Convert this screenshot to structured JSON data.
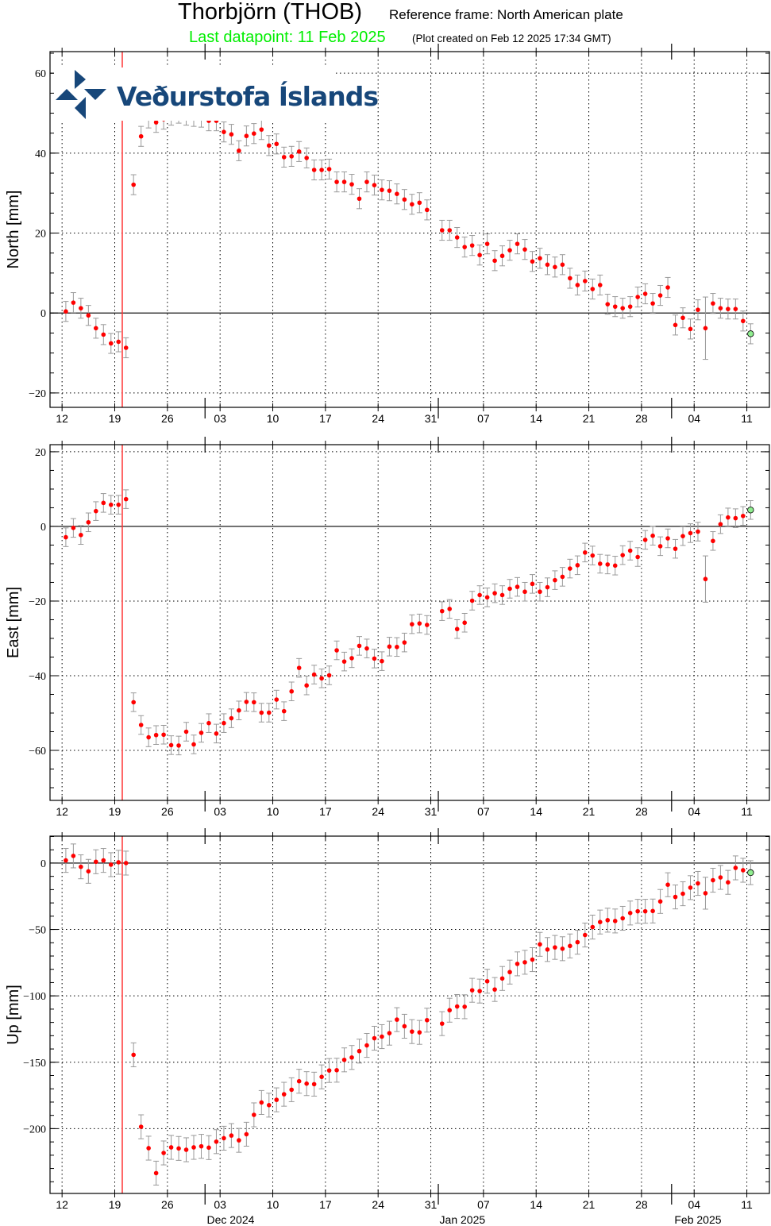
{
  "header": {
    "title": "Thorbjörn (THOB)",
    "reference_frame": "Reference frame: North American plate",
    "last_datapoint": "Last datapoint: 11 Feb 2025",
    "plot_created": "(Plot created on Feb 12 2025 17:34 GMT)"
  },
  "logo": {
    "text": "Veðurstofa Íslands"
  },
  "colors": {
    "point": "#ff0000",
    "last_point": "#90ee90",
    "event_line": "#ff3333",
    "error_bar": "#999999",
    "last_datapoint_text": "#00ee00",
    "logo": "#17477a"
  },
  "chart_data": [
    {
      "type": "scatter",
      "name": "north",
      "ylabel": "North [mm]",
      "ylim": [
        -23.6,
        65.4
      ],
      "yticks": [
        -20,
        0,
        20,
        40,
        60
      ],
      "yminor_step": 5,
      "x_start": "12 Nov 2024",
      "x_unit": "days",
      "error_default": 2.5,
      "error_overrides": {
        "85": 7.8
      },
      "values": [
        0.4,
        2.6,
        1.2,
        -0.6,
        -3.8,
        -5.4,
        -7.6,
        -7.2,
        -8.7,
        32.1,
        44.2,
        48.8,
        47.7,
        48.5,
        49.5,
        50.0,
        49.5,
        49.2,
        49.0,
        48.1,
        48.1,
        45.3,
        44.7,
        40.6,
        44.3,
        44.9,
        45.9,
        41.9,
        42.3,
        39.0,
        39.2,
        40.4,
        38.8,
        35.8,
        35.8,
        36.0,
        32.8,
        32.8,
        32.2,
        28.6,
        32.8,
        32.0,
        30.8,
        30.6,
        29.8,
        28.4,
        27.2,
        27.6,
        25.8,
        null,
        20.7,
        20.7,
        18.9,
        16.5,
        16.9,
        14.5,
        17.3,
        13.1,
        14.3,
        15.7,
        17.3,
        15.9,
        12.9,
        13.7,
        12.1,
        11.5,
        12.1,
        8.7,
        7.0,
        8.0,
        6.0,
        7.0,
        2.2,
        1.6,
        1.2,
        1.6,
        4.0,
        4.8,
        2.4,
        4.4,
        6.4,
        -3.0,
        -1.2,
        -4.0,
        0.8,
        -3.8,
        2.4,
        1.2,
        1.0,
        1.0,
        -2.0,
        -5.2
      ]
    },
    {
      "type": "scatter",
      "name": "east",
      "ylabel": "East [mm]",
      "ylim": [
        -73.4,
        21.9
      ],
      "yticks": [
        -60,
        -40,
        -20,
        0,
        20
      ],
      "yminor_step": 5,
      "x_start": "12 Nov 2024",
      "x_unit": "days",
      "error_default": 2.5,
      "error_overrides": {
        "85": 6.2
      },
      "values": [
        -2.9,
        -0.4,
        -2.3,
        1.1,
        4.1,
        6.3,
        5.8,
        5.8,
        7.3,
        -47.1,
        -53.2,
        -56.5,
        -55.9,
        -55.8,
        -58.6,
        -58.7,
        -55.0,
        -58.4,
        -55.3,
        -52.7,
        -55.5,
        -52.7,
        -51.4,
        -49.3,
        -47.0,
        -47.1,
        -49.9,
        -49.9,
        -46.4,
        -49.5,
        -44.2,
        -37.9,
        -42.6,
        -39.7,
        -40.7,
        -39.9,
        -33.2,
        -36.2,
        -35.3,
        -32.0,
        -32.7,
        -35.4,
        -36.1,
        -32.2,
        -32.3,
        -31.1,
        -26.2,
        -26.0,
        -26.4,
        null,
        -22.7,
        -22.1,
        -27.5,
        -25.8,
        -19.9,
        -18.4,
        -19.0,
        -17.9,
        -18.4,
        -16.7,
        -16.2,
        -17.5,
        -15.4,
        -17.5,
        -16.3,
        -14.4,
        -13.5,
        -11.3,
        -10.4,
        -7.0,
        -7.8,
        -10.0,
        -10.2,
        -10.5,
        -7.7,
        -6.5,
        -8.2,
        -3.6,
        -2.5,
        -5.3,
        -3.2,
        -6.0,
        -2.6,
        -1.8,
        -1.4,
        -14.1,
        -3.9,
        0.6,
        2.4,
        2.2,
        2.8,
        4.4
      ]
    },
    {
      "type": "scatter",
      "name": "up",
      "ylabel": "Up [mm]",
      "ylim": [
        -248.8,
        20.3
      ],
      "yticks": [
        -200,
        -150,
        -100,
        -50,
        0
      ],
      "yminor_step": 10,
      "x_start": "12 Nov 2024",
      "x_unit": "days",
      "error_default": 9,
      "error_overrides": {
        "85": 12
      },
      "values": [
        2.0,
        5.4,
        -2.8,
        -6.2,
        1.0,
        2.0,
        -1.2,
        0.6,
        0,
        -144.4,
        -198.6,
        -214.7,
        -233.5,
        -218.3,
        -214.1,
        -214.9,
        -215.9,
        -214.1,
        -213.3,
        -214.3,
        -209.8,
        -207.2,
        -205.2,
        -208.8,
        -204.2,
        -189.6,
        -180.3,
        -182.3,
        -178.3,
        -174.1,
        -170.7,
        -164.3,
        -166.1,
        -166.5,
        -161.0,
        -156.2,
        -156.0,
        -148.2,
        -146.4,
        -141.6,
        -137.3,
        -131.9,
        -130.7,
        -128.1,
        -117.9,
        -122.9,
        -126.9,
        -127.5,
        -118.3,
        null,
        -120.9,
        -110.8,
        -108.0,
        -108.2,
        -95.8,
        -96.4,
        -89.0,
        -95.2,
        -86.9,
        -82.1,
        -75.9,
        -74.7,
        -72.7,
        -61.2,
        -65.1,
        -63.5,
        -64.5,
        -62.4,
        -59.6,
        -54.2,
        -48.2,
        -44.4,
        -43.0,
        -43.6,
        -41.6,
        -37.6,
        -36.3,
        -36.3,
        -36.1,
        -28.9,
        -16.3,
        -25.5,
        -23.1,
        -18.5,
        -15.3,
        -22.7,
        -12.9,
        -10.8,
        -14.5,
        -3.6,
        -5.4,
        -7.2
      ]
    }
  ],
  "x_axis": {
    "tick_labels": [
      "12",
      "19",
      "26",
      "03",
      "10",
      "17",
      "24",
      "31",
      "07",
      "14",
      "21",
      "28",
      "04",
      "11"
    ],
    "tick_step_days": 7,
    "month_boundaries_days": [
      19,
      50,
      81
    ],
    "month_labels": [
      "Dec 2024",
      "Jan 2025",
      "Feb 2025"
    ],
    "event_day": 8,
    "xlim_days": [
      -1.6,
      94
    ]
  }
}
